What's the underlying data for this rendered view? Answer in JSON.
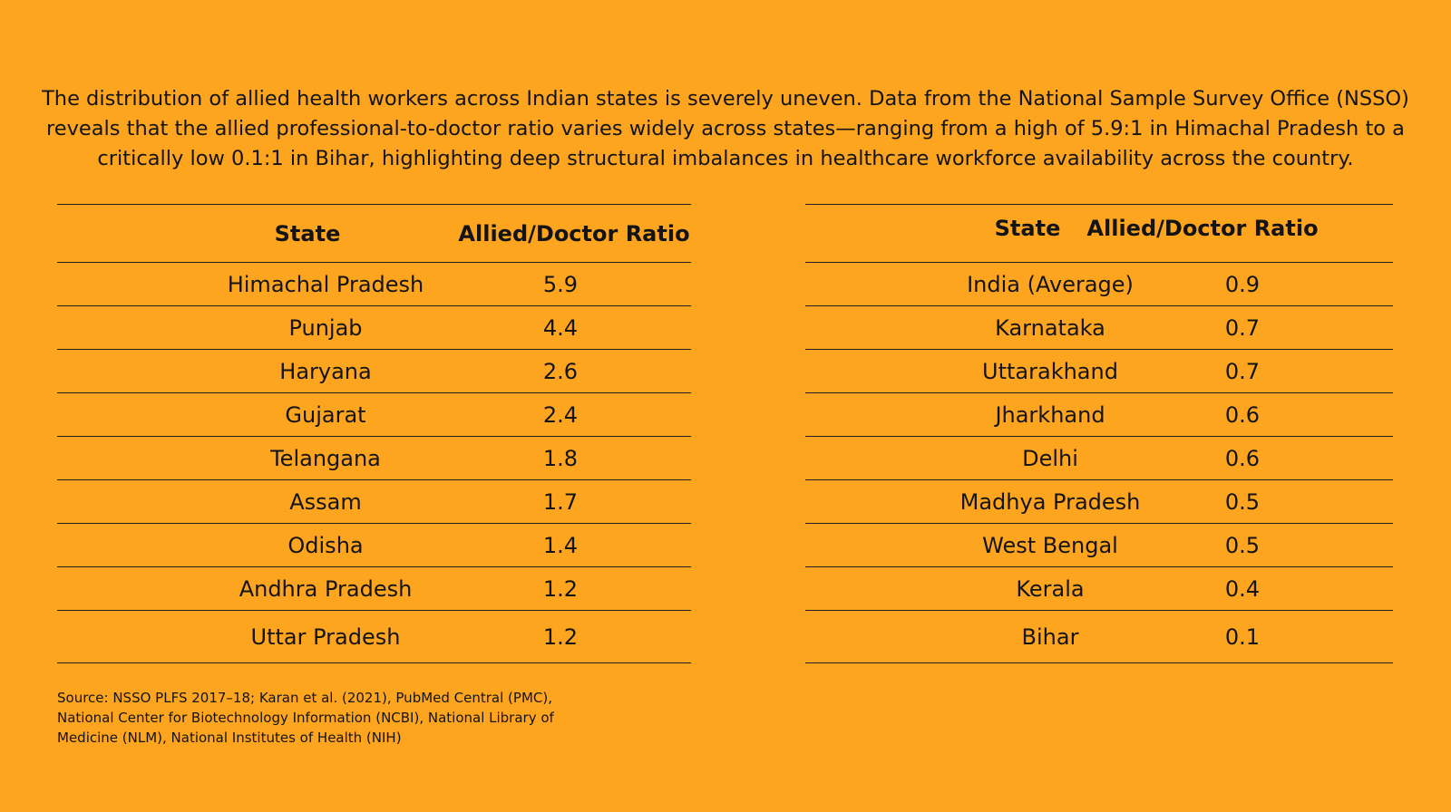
{
  "intro": "The distribution of allied health workers across Indian states is severely uneven. Data from the National Sample Survey Office (NSSO) reveals that the allied professional-to-doctor ratio varies widely across states—ranging from a high of 5.9:1 in Himachal Pradesh to a critically low 0.1:1 in Bihar, highlighting deep structural imbalances in healthcare workforce availability across the country.",
  "left_table": {
    "headers": [
      "State",
      "Allied/Doctor Ratio"
    ],
    "rows": [
      {
        "state": "Himachal Pradesh",
        "ratio": "5.9"
      },
      {
        "state": "Punjab",
        "ratio": "4.4"
      },
      {
        "state": "Haryana",
        "ratio": "2.6"
      },
      {
        "state": "Gujarat",
        "ratio": "2.4"
      },
      {
        "state": "Telangana",
        "ratio": "1.8"
      },
      {
        "state": "Assam",
        "ratio": "1.7"
      },
      {
        "state": "Odisha",
        "ratio": "1.4"
      },
      {
        "state": "Andhra Pradesh",
        "ratio": "1.2"
      },
      {
        "state": "Uttar Pradesh",
        "ratio": "1.2"
      }
    ]
  },
  "right_table": {
    "headers": [
      "State",
      "Allied/Doctor Ratio"
    ],
    "rows": [
      {
        "state": "India (Average)",
        "ratio": "0.9"
      },
      {
        "state": "Karnataka",
        "ratio": "0.7"
      },
      {
        "state": "Uttarakhand",
        "ratio": "0.7"
      },
      {
        "state": "Jharkhand",
        "ratio": "0.6"
      },
      {
        "state": "Delhi",
        "ratio": "0.6"
      },
      {
        "state": "Madhya Pradesh",
        "ratio": "0.5"
      },
      {
        "state": "West Bengal",
        "ratio": "0.5"
      },
      {
        "state": "Kerala",
        "ratio": "0.4"
      },
      {
        "state": "Bihar",
        "ratio": "0.1"
      }
    ]
  },
  "source": "Source: NSSO PLFS 2017–18; Karan et al. (2021), PubMed Central (PMC), National Center for Biotechnology Information (NCBI), National Library of Medicine (NLM), National Institutes of Health (NIH)",
  "colors": {
    "background": "#FEA520",
    "text": "#141414",
    "rule": "#222222"
  }
}
